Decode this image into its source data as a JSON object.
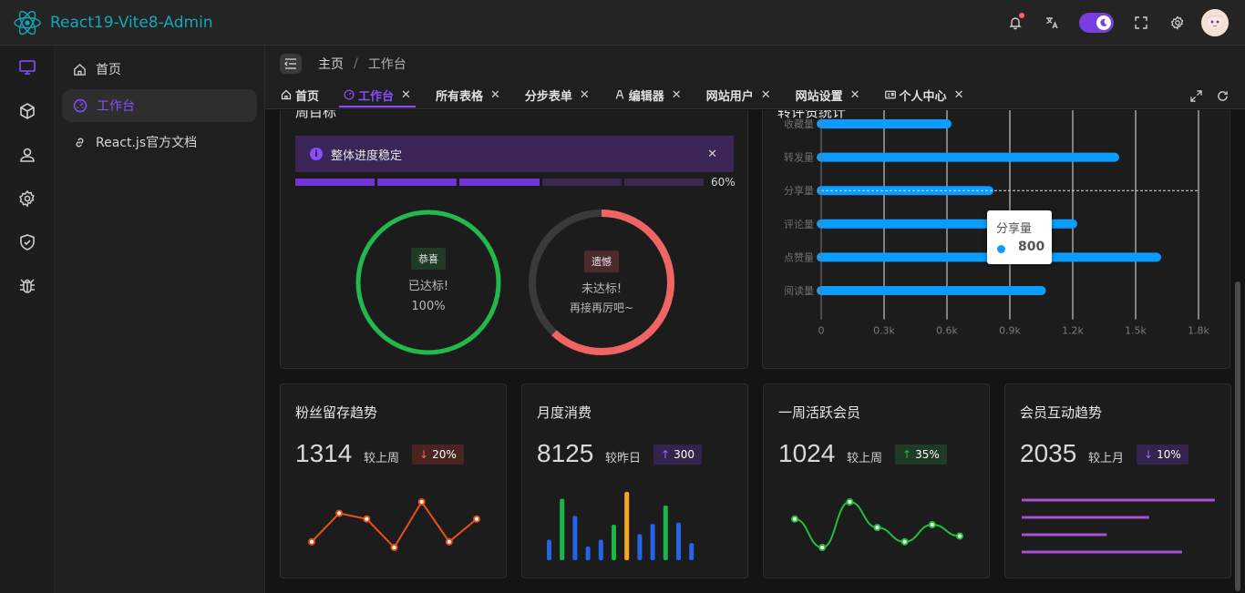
{
  "app": {
    "title": "React19-Vite8-Admin"
  },
  "header": {
    "icons": [
      "bell-icon",
      "translate-icon",
      "theme-toggle",
      "fullscreen-icon",
      "settings-icon",
      "avatar"
    ],
    "accent": "#8a4dff"
  },
  "rail": {
    "items": [
      "monitor-icon",
      "cube-icon",
      "user-icon",
      "gear-icon",
      "shield-icon",
      "bug-icon"
    ]
  },
  "submenu": {
    "items": [
      {
        "label": "首页",
        "icon": "home-icon"
      },
      {
        "label": "工作台",
        "icon": "dashboard-icon"
      },
      {
        "label": "React.js官方文档",
        "icon": "link-icon"
      }
    ]
  },
  "breadcrumb": {
    "items": [
      "主页",
      "工作台"
    ],
    "separator": "/"
  },
  "tabs": [
    {
      "label": "首页",
      "icon": "home-icon",
      "closable": false
    },
    {
      "label": "工作台",
      "icon": "dashboard-icon",
      "closable": true
    },
    {
      "label": "所有表格",
      "closable": true
    },
    {
      "label": "分步表单",
      "closable": true
    },
    {
      "label": "编辑器",
      "icon": "editor-icon",
      "closable": true
    },
    {
      "label": "网站用户",
      "closable": true
    },
    {
      "label": "网站设置",
      "closable": true
    },
    {
      "label": "个人中心",
      "icon": "id-card-icon",
      "closable": true
    }
  ],
  "goals": {
    "title": "周目标",
    "alert": "整体进度稳定",
    "progress_percent": 60,
    "progress_label": "60%",
    "success": {
      "tag": "恭喜",
      "text": "已达标!",
      "value": "100%",
      "fraction": 1.0
    },
    "fail": {
      "tag": "遗憾",
      "text": "未达标!",
      "sub": "再接再厉吧~",
      "fraction": 0.62
    }
  },
  "forward_stats": {
    "title": "转评赞统计",
    "tooltip": {
      "label": "分享量",
      "value": "800"
    }
  },
  "chart_data": {
    "type": "bar",
    "orientation": "horizontal",
    "categories": [
      "收藏量",
      "转发量",
      "分享量",
      "评论量",
      "点赞量",
      "阅读量"
    ],
    "values": [
      600,
      1400,
      800,
      1200,
      1600,
      1050
    ],
    "xticks": [
      "0",
      "0.3k",
      "0.6k",
      "0.9k",
      "1.2k",
      "1.5k",
      "1.8k"
    ],
    "xlim": [
      0,
      1800
    ],
    "grid": true,
    "color": "#0a9cff"
  },
  "stats": [
    {
      "title": "粉丝留存趋势",
      "value": "1314",
      "compare": "较上周",
      "badge": "20%",
      "arrow": "↓",
      "trend": "down",
      "spark": [
        1,
        6,
        5,
        0,
        8,
        1,
        5
      ],
      "spark_color": "#e8501a",
      "kind": "line"
    },
    {
      "title": "月度消费",
      "value": "8125",
      "compare": "较昨日",
      "badge": "300",
      "arrow": "↑",
      "trend": "up",
      "spark": [
        3,
        9,
        6.5,
        2,
        3,
        5.2,
        10,
        3.8,
        5.3,
        8,
        5.5,
        2.5
      ],
      "kind": "bars"
    },
    {
      "title": "一周活跃会员",
      "value": "1024",
      "compare": "较上周",
      "badge": "35%",
      "arrow": "↑",
      "trend": "up",
      "spark": [
        5,
        0,
        8,
        3.5,
        1,
        4,
        2
      ],
      "spark_color": "#22c03a",
      "kind": "curve"
    },
    {
      "title": "会员互动趋势",
      "value": "2035",
      "compare": "较上月",
      "badge": "10%",
      "arrow": "↓",
      "trend": "down",
      "spark": [
        1.0,
        0.66,
        0.44,
        0.83
      ],
      "spark_color": "#a94fd0",
      "kind": "hbars"
    }
  ]
}
